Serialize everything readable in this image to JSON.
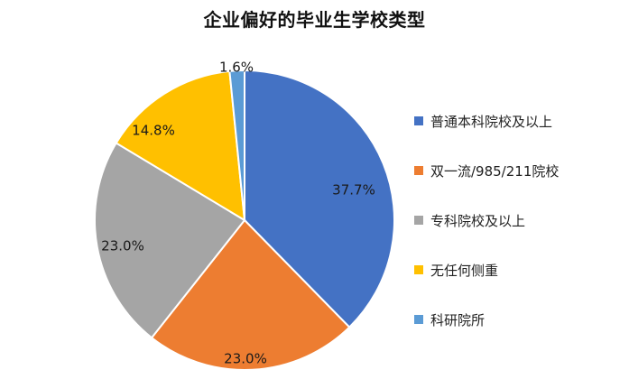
{
  "chart_data": {
    "type": "pie",
    "title": "企业偏好的毕业生学校类型",
    "categories": [
      "普通本科院校及以上",
      "双一流/985/211院校",
      "专科院校及以上",
      "无任何侧重",
      "科研院所"
    ],
    "values": [
      37.7,
      23.0,
      23.0,
      14.8,
      1.6
    ],
    "data_labels": [
      "37.7%",
      "23.0%",
      "23.0%",
      "14.8%",
      "1.6%"
    ],
    "colors": [
      "#4472C4",
      "#ED7D31",
      "#A5A5A5",
      "#FFC000",
      "#5B9BD5"
    ],
    "start_angle_deg": 0,
    "direction": "clockwise",
    "legend_position": "right"
  }
}
